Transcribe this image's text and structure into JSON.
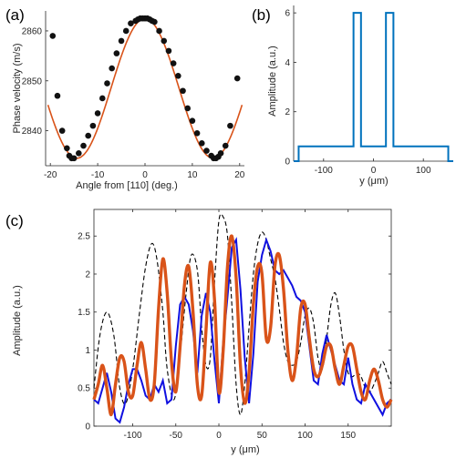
{
  "colors": {
    "fit_curve": "#d95319",
    "markers": "#111111",
    "spectrum": "#0072bd",
    "measured": "#1010e0",
    "simulated": "#d95319",
    "reference": "#000000",
    "axes": "#262626"
  },
  "chart_data": [
    {
      "panel": "(a)",
      "type": "line+scatter",
      "xlabel": "Angle from [110] (deg.)",
      "ylabel": "Phase velocity (m/s)",
      "xlim": [
        -21,
        21
      ],
      "ylim": [
        2833,
        2864
      ],
      "xticks": [
        -20,
        -10,
        0,
        10,
        20
      ],
      "yticks": [
        2840,
        2850,
        2860
      ],
      "grid": false,
      "legend": "none",
      "model": "v(θ) = 2848.5 + 14.0·cos(12.5°·θ) (drawn fit curve)",
      "fit_params": {
        "mean": 2848.5,
        "amplitude": 14.0,
        "freq_deg_per_deg": 12.5
      },
      "series": [
        {
          "kind": "scatter",
          "x": [
            -19.5,
            -18.5,
            -17.5,
            -16.5,
            -16.0,
            -15.5,
            -15.0,
            -14.0,
            -13.0,
            -12.0,
            -11.0,
            -10.0,
            -9.0,
            -8.0,
            -7.0,
            -6.0,
            -5.0,
            -4.0,
            -3.0,
            -2.0,
            -1.5,
            -1.0,
            -0.5,
            0.0,
            0.5,
            1.0,
            1.5,
            2.0,
            3.0,
            4.0,
            5.0,
            6.0,
            7.0,
            8.0,
            9.0,
            10.0,
            11.0,
            12.0,
            13.0,
            14.0,
            14.5,
            15.0,
            15.5,
            16.0,
            17.0,
            18.0,
            19.5
          ],
          "y": [
            2859.0,
            2847.0,
            2840.0,
            2836.5,
            2835.0,
            2834.5,
            2834.5,
            2835.5,
            2837.0,
            2839.0,
            2841.0,
            2843.5,
            2846.5,
            2849.5,
            2852.5,
            2855.5,
            2858.0,
            2860.0,
            2861.5,
            2862.0,
            2862.3,
            2862.5,
            2862.5,
            2862.5,
            2862.5,
            2862.3,
            2862.0,
            2861.8,
            2860.0,
            2858.0,
            2856.0,
            2853.5,
            2851.0,
            2848.0,
            2844.5,
            2842.0,
            2839.5,
            2837.5,
            2836.0,
            2835.0,
            2834.5,
            2834.5,
            2834.8,
            2835.5,
            2837.0,
            2841.0,
            2850.5
          ]
        }
      ]
    },
    {
      "panel": "(b)",
      "type": "line",
      "xlabel": "y (μm)",
      "ylabel": "Amplitude (a.u.)",
      "xlim": [
        -160,
        160
      ],
      "ylim": [
        0,
        6.3
      ],
      "xticks": [
        -100,
        0,
        100
      ],
      "yticks": [
        0,
        2,
        4,
        6
      ],
      "grid": false,
      "legend": "none",
      "series": [
        {
          "x": [
            -160,
            -150,
            -150,
            -40,
            -40,
            -25,
            -25,
            25,
            25,
            40,
            40,
            150,
            150,
            160
          ],
          "y": [
            0,
            0,
            0.6,
            0.6,
            6,
            6,
            0.6,
            0.6,
            6,
            6,
            0.6,
            0.6,
            0,
            0
          ]
        }
      ]
    },
    {
      "panel": "(c)",
      "type": "line",
      "xlabel": "y (μm)",
      "ylabel": "Amplitude (a.u.)",
      "xlim": [
        -145,
        200
      ],
      "ylim": [
        0,
        2.85
      ],
      "xticks": [
        -100,
        -50,
        0,
        50,
        100,
        150
      ],
      "yticks": [
        0,
        0.5,
        1,
        1.5,
        2,
        2.5
      ],
      "grid": false,
      "legend": "none",
      "series": [
        {
          "style": "dashed",
          "x": [
            -145,
            -138,
            -130,
            -122,
            -115,
            -108,
            -100,
            -92,
            -85,
            -78,
            -72,
            -65,
            -60,
            -52,
            -45,
            -38,
            -32,
            -25,
            -20,
            -15,
            -10,
            -5,
            0,
            5,
            10,
            15,
            20,
            25,
            30,
            35,
            40,
            45,
            50,
            55,
            60,
            65,
            70,
            75,
            80,
            85,
            90,
            95,
            100,
            105,
            110,
            115,
            120,
            125,
            130,
            135,
            140,
            145,
            150,
            155,
            160,
            165,
            170,
            175,
            180,
            185,
            190,
            195,
            200
          ],
          "y": [
            0.5,
            1.2,
            1.5,
            1.2,
            0.5,
            0.3,
            0.75,
            1.5,
            2.1,
            2.4,
            2.2,
            1.5,
            0.75,
            0.35,
            0.95,
            1.75,
            2.25,
            2.05,
            1.3,
            0.8,
            0.9,
            1.9,
            2.7,
            2.75,
            2.5,
            1.6,
            0.55,
            0.15,
            0.55,
            1.3,
            2.0,
            2.4,
            2.55,
            2.45,
            2.2,
            1.95,
            1.55,
            1.1,
            0.85,
            0.8,
            0.85,
            1.1,
            1.45,
            1.55,
            1.35,
            0.9,
            0.75,
            1.15,
            1.6,
            1.75,
            1.45,
            1.0,
            0.7,
            0.65,
            0.7,
            0.65,
            0.5,
            0.45,
            0.55,
            0.7,
            0.85,
            0.7,
            0.55
          ]
        },
        {
          "x": [
            -145,
            -140,
            -135,
            -130,
            -125,
            -120,
            -115,
            -110,
            -105,
            -100,
            -95,
            -90,
            -85,
            -80,
            -75,
            -70,
            -65,
            -60,
            -55,
            -50,
            -45,
            -40,
            -35,
            -30,
            -25,
            -20,
            -15,
            -10,
            -5,
            0,
            5,
            10,
            15,
            20,
            25,
            30,
            35,
            40,
            45,
            50,
            55,
            60,
            65,
            70,
            75,
            80,
            85,
            90,
            95,
            100,
            105,
            110,
            115,
            120,
            125,
            130,
            135,
            140,
            145,
            150,
            155,
            160,
            165,
            170,
            175,
            180,
            185,
            190,
            195,
            200
          ],
          "y": [
            0.35,
            0.3,
            0.5,
            0.7,
            0.45,
            0.1,
            0.05,
            0.25,
            0.55,
            0.75,
            0.75,
            0.6,
            0.4,
            0.35,
            0.55,
            0.45,
            0.6,
            0.3,
            0.35,
            1.05,
            1.6,
            1.7,
            1.6,
            1.25,
            0.7,
            1.45,
            1.75,
            1.5,
            0.85,
            0.3,
            1.1,
            1.7,
            2.35,
            2.45,
            1.8,
            0.9,
            0.3,
            0.95,
            1.9,
            2.25,
            2.45,
            2.3,
            2.05,
            2.0,
            2.05,
            1.95,
            1.85,
            1.7,
            1.65,
            1.5,
            1.05,
            0.6,
            0.55,
            0.95,
            1.2,
            1.0,
            0.8,
            0.6,
            0.55,
            0.9,
            0.55,
            0.35,
            0.3,
            0.55,
            0.45,
            0.35,
            0.25,
            0.15,
            0.3,
            0.35
          ]
        },
        {
          "x": [
            -145,
            -140,
            -135,
            -130,
            -125,
            -120,
            -115,
            -110,
            -105,
            -100,
            -95,
            -90,
            -85,
            -80,
            -75,
            -70,
            -65,
            -60,
            -55,
            -50,
            -45,
            -40,
            -35,
            -30,
            -25,
            -20,
            -15,
            -10,
            -5,
            0,
            5,
            10,
            15,
            20,
            25,
            30,
            35,
            40,
            45,
            50,
            55,
            60,
            65,
            70,
            75,
            80,
            85,
            90,
            95,
            100,
            105,
            110,
            115,
            120,
            125,
            130,
            135,
            140,
            145,
            150,
            155,
            160,
            165,
            170,
            175,
            180,
            185,
            190,
            195,
            200
          ],
          "y": [
            0.35,
            0.55,
            0.8,
            0.5,
            0.15,
            0.55,
            0.9,
            0.85,
            0.45,
            0.4,
            0.8,
            1.1,
            0.75,
            0.35,
            0.55,
            1.55,
            2.2,
            1.75,
            0.85,
            0.45,
            1.05,
            1.85,
            2.1,
            1.5,
            0.55,
            0.4,
            1.25,
            2.15,
            1.65,
            0.45,
            1.0,
            2.1,
            2.5,
            1.95,
            0.8,
            0.3,
            0.7,
            1.6,
            2.1,
            2.0,
            1.15,
            1.3,
            2.1,
            2.25,
            1.8,
            1.0,
            0.6,
            0.9,
            1.55,
            1.6,
            1.15,
            0.75,
            0.65,
            0.8,
            1.05,
            1.05,
            0.75,
            0.55,
            0.8,
            1.05,
            1.05,
            0.75,
            0.45,
            0.35,
            0.6,
            0.75,
            0.6,
            0.35,
            0.25,
            0.35
          ]
        }
      ]
    }
  ]
}
